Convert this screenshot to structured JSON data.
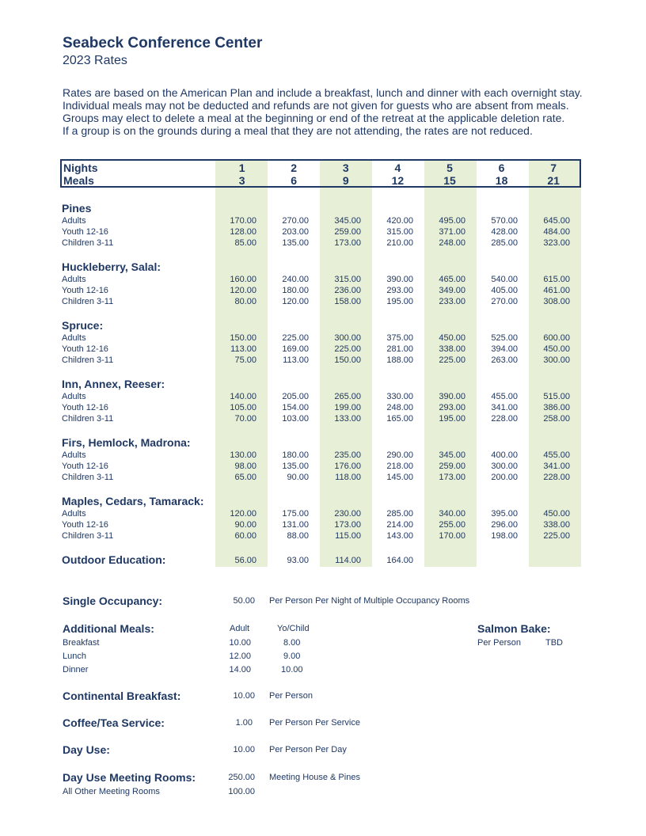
{
  "header": {
    "title": "Seabeck Conference Center",
    "subtitle": "2023 Rates"
  },
  "intro": [
    "Rates are based on the American Plan and include a breakfast, lunch and dinner with each overnight stay.",
    "Individual meals may not be deducted and refunds are not given for guests who are absent from meals.",
    "Groups may elect to delete a meal at the beginning or end of the retreat at the applicable deletion rate.",
    "If a group is on the grounds during a meal that they are not attending, the rates are not reduced."
  ],
  "shade_color": "#e7efd6",
  "table": {
    "nights_label": "Nights",
    "meals_label": "Meals",
    "nights": [
      "1",
      "2",
      "3",
      "4",
      "5",
      "6",
      "7"
    ],
    "meals": [
      "3",
      "6",
      "9",
      "12",
      "15",
      "18",
      "21"
    ],
    "sections": [
      {
        "name": "Pines",
        "rows": [
          {
            "label": "Adults",
            "values": [
              "170.00",
              "270.00",
              "345.00",
              "420.00",
              "495.00",
              "570.00",
              "645.00"
            ]
          },
          {
            "label": "Youth 12-16",
            "values": [
              "128.00",
              "203.00",
              "259.00",
              "315.00",
              "371.00",
              "428.00",
              "484.00"
            ]
          },
          {
            "label": "Children 3-11",
            "values": [
              "85.00",
              "135.00",
              "173.00",
              "210.00",
              "248.00",
              "285.00",
              "323.00"
            ]
          }
        ]
      },
      {
        "name": "Huckleberry, Salal:",
        "rows": [
          {
            "label": "Adults",
            "values": [
              "160.00",
              "240.00",
              "315.00",
              "390.00",
              "465.00",
              "540.00",
              "615.00"
            ]
          },
          {
            "label": "Youth 12-16",
            "values": [
              "120.00",
              "180.00",
              "236.00",
              "293.00",
              "349.00",
              "405.00",
              "461.00"
            ]
          },
          {
            "label": "Children 3-11",
            "values": [
              "80.00",
              "120.00",
              "158.00",
              "195.00",
              "233.00",
              "270.00",
              "308.00"
            ]
          }
        ]
      },
      {
        "name": "Spruce:",
        "rows": [
          {
            "label": "Adults",
            "values": [
              "150.00",
              "225.00",
              "300.00",
              "375.00",
              "450.00",
              "525.00",
              "600.00"
            ]
          },
          {
            "label": "Youth 12-16",
            "values": [
              "113.00",
              "169.00",
              "225.00",
              "281.00",
              "338.00",
              "394.00",
              "450.00"
            ]
          },
          {
            "label": "Children 3-11",
            "values": [
              "75.00",
              "113.00",
              "150.00",
              "188.00",
              "225.00",
              "263.00",
              "300.00"
            ]
          }
        ]
      },
      {
        "name": "Inn, Annex, Reeser:",
        "rows": [
          {
            "label": "Adults",
            "values": [
              "140.00",
              "205.00",
              "265.00",
              "330.00",
              "390.00",
              "455.00",
              "515.00"
            ]
          },
          {
            "label": "Youth 12-16",
            "values": [
              "105.00",
              "154.00",
              "199.00",
              "248.00",
              "293.00",
              "341.00",
              "386.00"
            ]
          },
          {
            "label": "Children 3-11",
            "values": [
              "70.00",
              "103.00",
              "133.00",
              "165.00",
              "195.00",
              "228.00",
              "258.00"
            ]
          }
        ]
      },
      {
        "name": "Firs, Hemlock, Madrona:",
        "rows": [
          {
            "label": "Adults",
            "values": [
              "130.00",
              "180.00",
              "235.00",
              "290.00",
              "345.00",
              "400.00",
              "455.00"
            ]
          },
          {
            "label": "Youth 12-16",
            "values": [
              "98.00",
              "135.00",
              "176.00",
              "218.00",
              "259.00",
              "300.00",
              "341.00"
            ]
          },
          {
            "label": "Children 3-11",
            "values": [
              "65.00",
              "90.00",
              "118.00",
              "145.00",
              "173.00",
              "200.00",
              "228.00"
            ]
          }
        ]
      },
      {
        "name": "Maples, Cedars, Tamarack:",
        "rows": [
          {
            "label": "Adults",
            "values": [
              "120.00",
              "175.00",
              "230.00",
              "285.00",
              "340.00",
              "395.00",
              "450.00"
            ]
          },
          {
            "label": "Youth 12-16",
            "values": [
              "90.00",
              "131.00",
              "173.00",
              "214.00",
              "255.00",
              "296.00",
              "338.00"
            ]
          },
          {
            "label": "Children 3-11",
            "values": [
              "60.00",
              "88.00",
              "115.00",
              "143.00",
              "170.00",
              "198.00",
              "225.00"
            ]
          }
        ]
      }
    ],
    "outdoor": {
      "name": "Outdoor Education:",
      "values": [
        "56.00",
        "93.00",
        "114.00",
        "164.00",
        "",
        "",
        ""
      ]
    }
  },
  "extras": {
    "single": {
      "label": "Single Occupancy:",
      "amount": "50.00",
      "desc": "Per Person Per Night of Multiple Occupancy Rooms"
    },
    "meals": {
      "label": "Additional Meals:",
      "adult_header": "Adult",
      "child_header": "Yo/Child",
      "rows": [
        {
          "label": "Breakfast",
          "adult": "10.00",
          "child": "8.00"
        },
        {
          "label": "Lunch",
          "adult": "12.00",
          "child": "9.00"
        },
        {
          "label": "Dinner",
          "adult": "14.00",
          "child": "10.00"
        }
      ]
    },
    "salmon": {
      "label": "Salmon Bake:",
      "desc": "Per Person",
      "value": "TBD"
    },
    "continental": {
      "label": "Continental Breakfast:",
      "amount": "10.00",
      "desc": "Per Person"
    },
    "coffee": {
      "label": "Coffee/Tea Service:",
      "amount": "1.00",
      "desc": "Per Person Per Service"
    },
    "dayuse": {
      "label": "Day Use:",
      "amount": "10.00",
      "desc": "Per Person Per Day"
    },
    "meeting": {
      "label": "Day Use Meeting Rooms:",
      "amount": "250.00",
      "desc": "Meeting House & Pines",
      "other_label": "All Other Meeting Rooms",
      "other_amount": "100.00"
    }
  }
}
